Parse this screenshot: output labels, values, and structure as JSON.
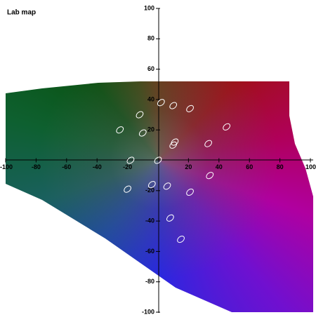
{
  "chart_data": {
    "type": "scatter",
    "title": "Lab map",
    "x": [
      2,
      10,
      21,
      -12,
      45,
      -25,
      -10,
      11,
      10,
      33,
      0,
      -18,
      34,
      -4,
      6,
      21,
      -20,
      8,
      15
    ],
    "y": [
      38,
      36,
      34,
      30,
      22,
      20,
      18,
      12,
      10,
      11,
      0,
      0,
      -10,
      -16,
      -17,
      -21,
      -19,
      -38,
      -52
    ],
    "color": "#ffffff",
    "xlim": [
      -100,
      100
    ],
    "ylim": [
      -100,
      100
    ],
    "xticks": [
      -100,
      -80,
      -60,
      -40,
      -20,
      20,
      40,
      60,
      80,
      100
    ],
    "yticks": [
      -100,
      -80,
      -60,
      -40,
      -20,
      20,
      40,
      60,
      80,
      100
    ]
  }
}
